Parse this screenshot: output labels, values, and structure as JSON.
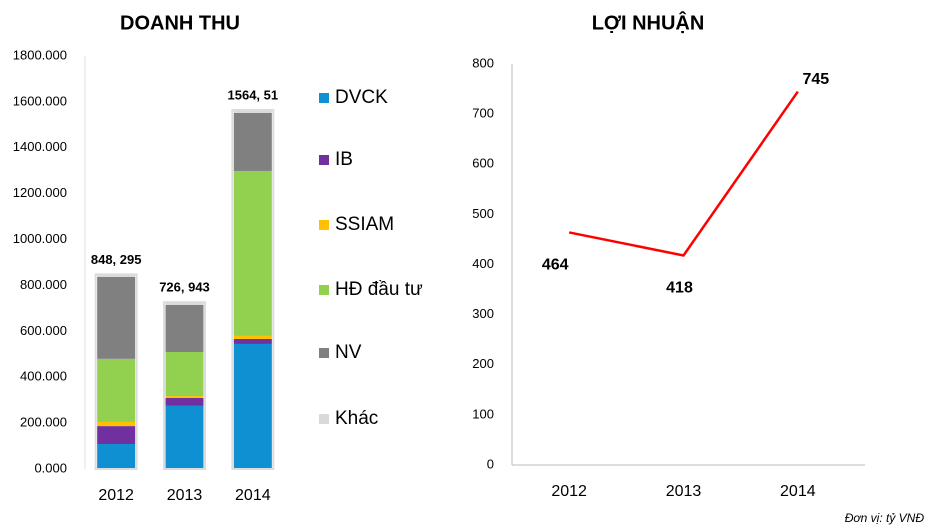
{
  "chart_data": [
    {
      "type": "stacked_bar",
      "title": "DOANH THU",
      "categories": [
        "2012",
        "2013",
        "2014"
      ],
      "series": [
        {
          "name": "DVCK",
          "color": "#0e90d2",
          "values": [
            109,
            275,
            545
          ]
        },
        {
          "name": "IB",
          "color": "#7030a0",
          "values": [
            78,
            35,
            22
          ]
        },
        {
          "name": "SSIAM",
          "color": "#ffc000",
          "values": [
            18,
            8,
            13
          ]
        },
        {
          "name": "HĐ đầu tư",
          "color": "#92d050",
          "values": [
            275,
            192,
            719
          ]
        },
        {
          "name": "NV",
          "color": "#808080",
          "values": [
            357,
            205,
            253
          ]
        },
        {
          "name": "Khác",
          "color": "#d9d9d9",
          "values": [
            11.3,
            11.9,
            12.5
          ]
        }
      ],
      "totals": [
        848.295,
        726.943,
        1564.51
      ],
      "total_labels": [
        "848, 295",
        "726, 943",
        "1564, 51"
      ],
      "ylim": [
        0,
        1800
      ],
      "yticks": [
        {
          "value": 0,
          "label": "0.000"
        },
        {
          "value": 200,
          "label": "200.000"
        },
        {
          "value": 400,
          "label": "400.000"
        },
        {
          "value": 600,
          "label": "600.000"
        },
        {
          "value": 800,
          "label": "800.000"
        },
        {
          "value": 1000,
          "label": "1000.000"
        },
        {
          "value": 1200,
          "label": "1200.000"
        },
        {
          "value": 1400,
          "label": "1400.000"
        },
        {
          "value": 1600,
          "label": "1600.000"
        },
        {
          "value": 1800,
          "label": "1800.000"
        }
      ],
      "legend": "right"
    },
    {
      "type": "line",
      "title": "LỢI NHUẬN",
      "categories": [
        "2012",
        "2013",
        "2014"
      ],
      "values": [
        464,
        418,
        745
      ],
      "color": "#ff0000",
      "ylim": [
        0,
        800
      ],
      "yticks": [
        0,
        100,
        200,
        300,
        400,
        500,
        600,
        700,
        800
      ]
    }
  ],
  "note": "Đơn vị: tỷ VNĐ"
}
